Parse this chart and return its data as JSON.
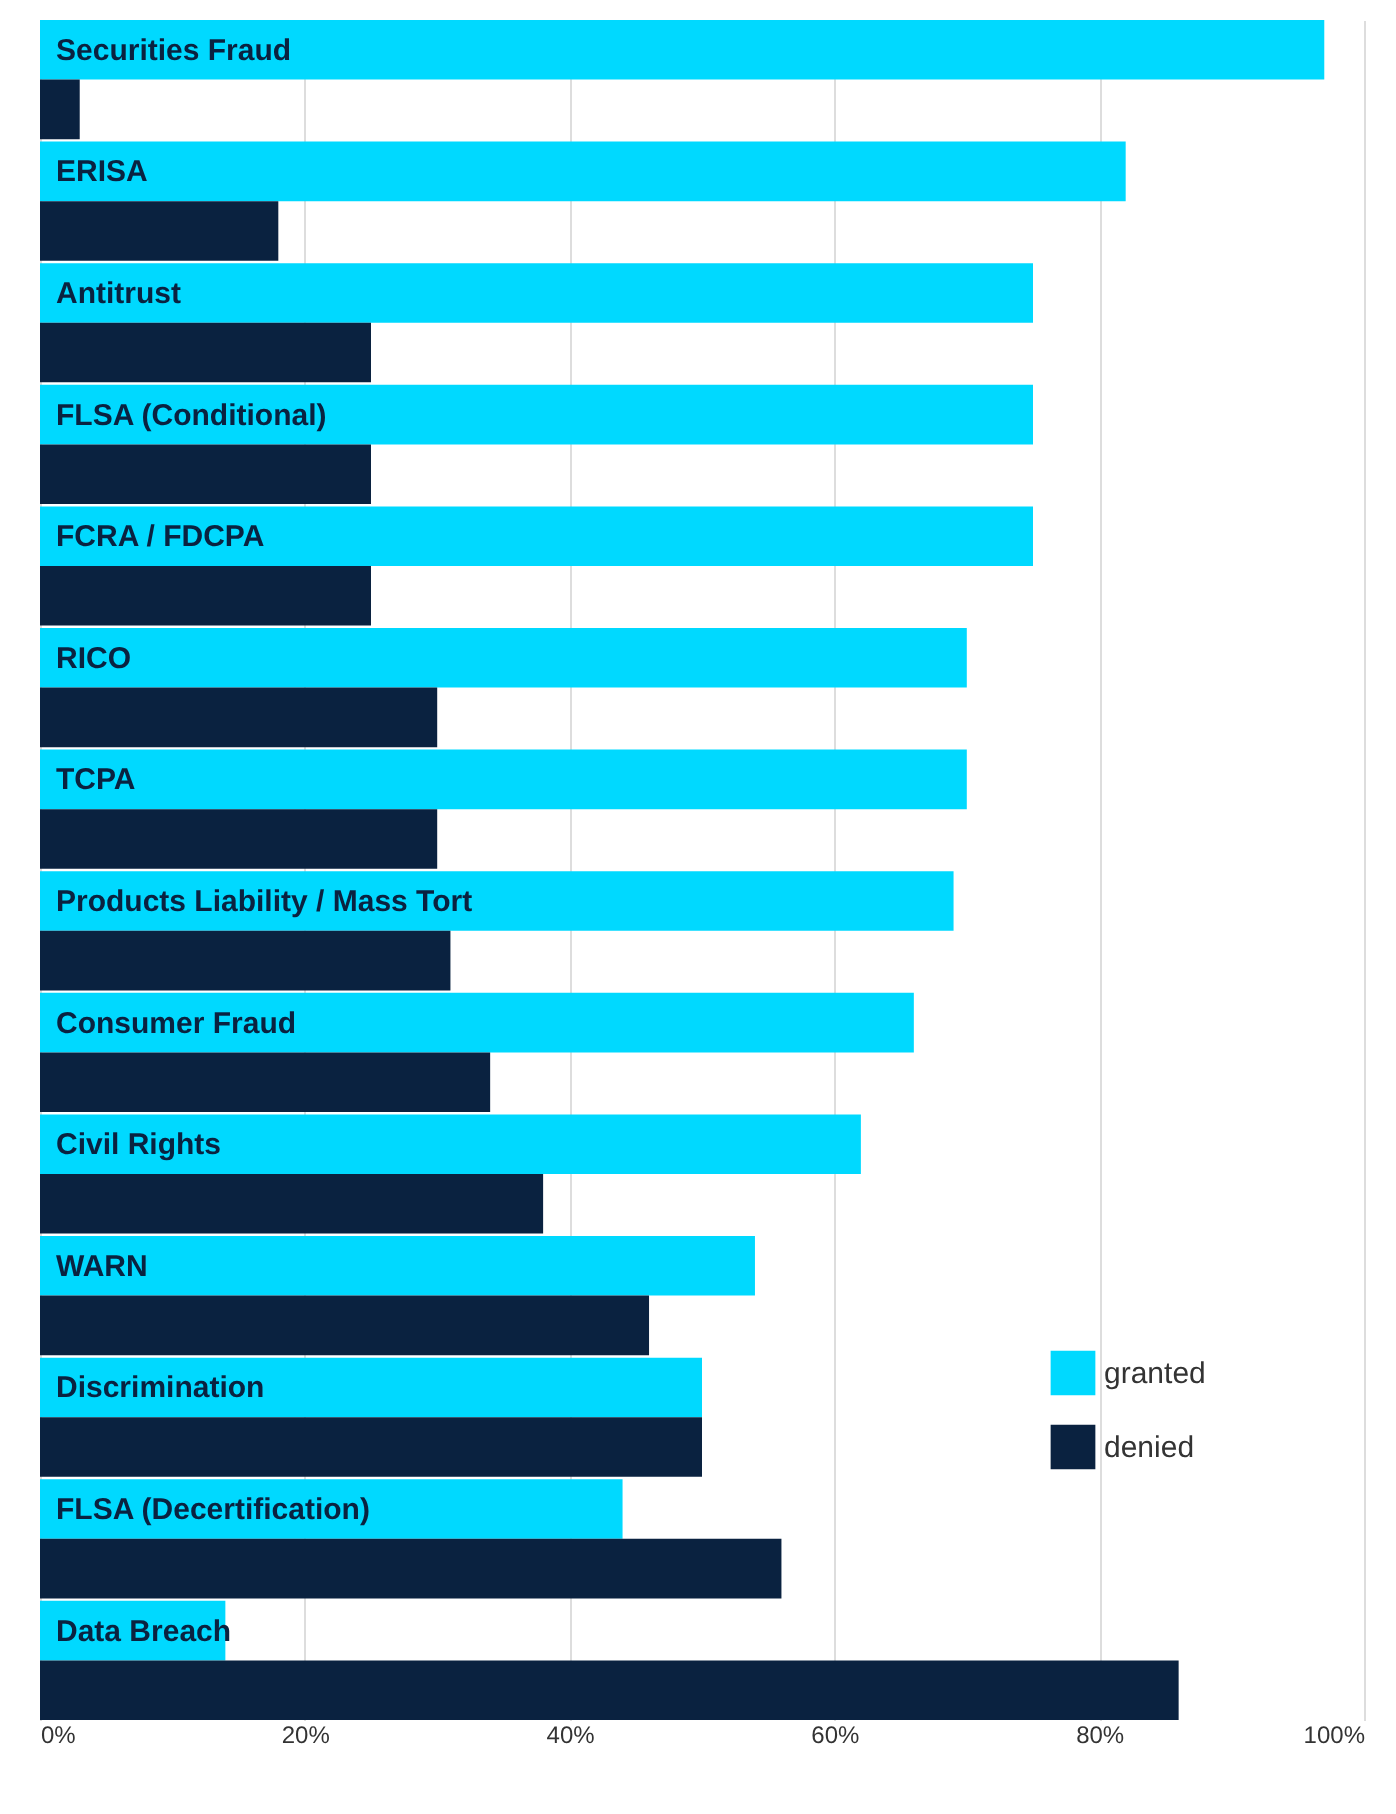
{
  "chart_data": {
    "type": "bar",
    "orientation": "horizontal",
    "categories": [
      "Securities Fraud",
      "ERISA",
      "Antitrust",
      "FLSA (Conditional)",
      "FCRA / FDCPA",
      "RICO",
      "TCPA",
      "Products Liability / Mass Tort",
      "Consumer Fraud",
      "Civil Rights",
      "WARN",
      "Discrimination",
      "FLSA (Decertification)",
      "Data Breach"
    ],
    "series": [
      {
        "name": "granted",
        "color": "#00d9ff",
        "values": [
          97,
          82,
          75,
          75,
          75,
          70,
          70,
          69,
          66,
          62,
          54,
          50,
          44,
          14
        ]
      },
      {
        "name": "denied",
        "color": "#0a2240",
        "values": [
          3,
          18,
          25,
          25,
          25,
          30,
          30,
          31,
          34,
          38,
          46,
          50,
          56,
          86
        ]
      }
    ],
    "xlim": [
      0,
      100
    ],
    "xticks": [
      {
        "value": 0,
        "label": "0%"
      },
      {
        "value": 20,
        "label": "20%"
      },
      {
        "value": 40,
        "label": "40%"
      },
      {
        "value": 60,
        "label": "60%"
      },
      {
        "value": 80,
        "label": "80%"
      },
      {
        "value": 100,
        "label": "100%"
      }
    ],
    "grid": "x",
    "legend": "bottom right"
  }
}
